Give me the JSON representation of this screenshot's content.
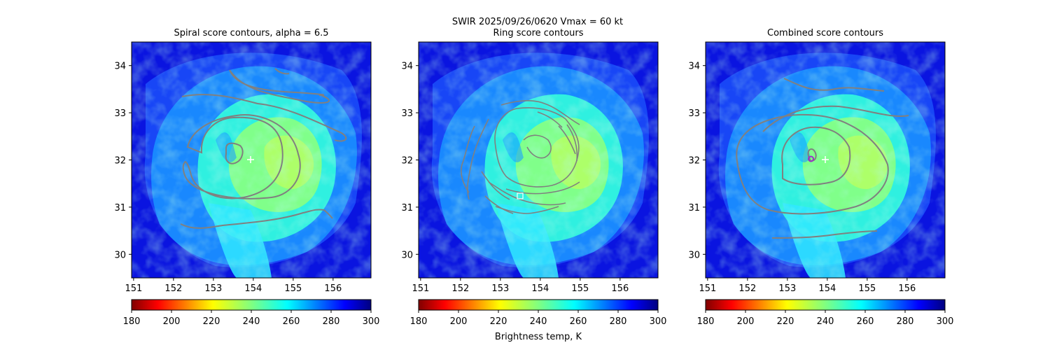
{
  "suptitle_line1": "SWIR  2025/09/26/0620    Vmax = 60 kt",
  "colorbar_label": "Brightness temp, K",
  "colors": {
    "contour": "#808080",
    "marker_white": "#ffffff",
    "marker_purple": "#9b30c8"
  },
  "chart_data": [
    {
      "type": "heatmap",
      "title": "Spiral score contours, alpha =  6.5",
      "xlim": [
        150.95,
        156.95
      ],
      "ylim": [
        29.5,
        34.5
      ],
      "xticks": [
        "151",
        "152",
        "153",
        "154",
        "155",
        "156"
      ],
      "yticks": [
        "30",
        "31",
        "32",
        "33",
        "34"
      ],
      "colorbar": {
        "min": 180,
        "max": 300,
        "ticks": [
          "180",
          "200",
          "220",
          "240",
          "260",
          "280",
          "300"
        ],
        "cmap": "jet_r"
      },
      "markers": [
        {
          "lon": 153.9,
          "lat": 32.0,
          "shape": "plus"
        }
      ]
    },
    {
      "type": "heatmap",
      "title": "Ring score contours",
      "xlim": [
        150.95,
        156.95
      ],
      "ylim": [
        29.5,
        34.5
      ],
      "xticks": [
        "151",
        "152",
        "153",
        "154",
        "155",
        "156"
      ],
      "yticks": [
        "30",
        "31",
        "32",
        "33",
        "34"
      ],
      "colorbar": {
        "min": 180,
        "max": 300,
        "ticks": [
          "180",
          "200",
          "220",
          "240",
          "260",
          "280",
          "300"
        ],
        "cmap": "jet_r"
      },
      "markers": [
        {
          "lon": 153.45,
          "lat": 31.22,
          "shape": "square"
        }
      ]
    },
    {
      "type": "heatmap",
      "title": "Combined score contours",
      "xlim": [
        150.95,
        156.95
      ],
      "ylim": [
        29.5,
        34.5
      ],
      "xticks": [
        "151",
        "152",
        "153",
        "154",
        "155",
        "156"
      ],
      "yticks": [
        "30",
        "31",
        "32",
        "33",
        "34"
      ],
      "colorbar": {
        "min": 180,
        "max": 300,
        "ticks": [
          "180",
          "200",
          "220",
          "240",
          "260",
          "280",
          "300"
        ],
        "cmap": "jet_r"
      },
      "markers": [
        {
          "lon": 153.9,
          "lat": 32.0,
          "shape": "plus"
        },
        {
          "lon": 153.6,
          "lat": 32.02,
          "shape": "circle"
        }
      ]
    }
  ]
}
